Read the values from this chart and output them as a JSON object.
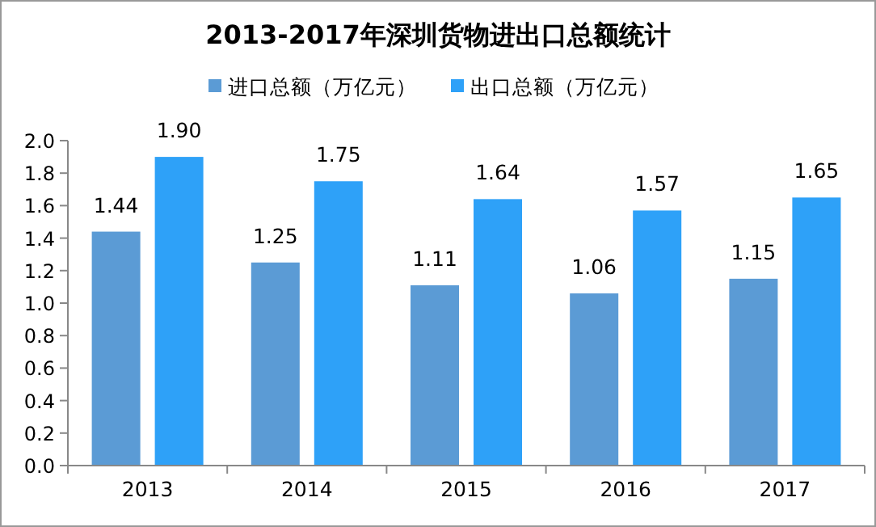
{
  "chart_data": {
    "type": "bar",
    "title": "2013-2017年深圳货物进出口总额统计",
    "categories": [
      "2013",
      "2014",
      "2015",
      "2016",
      "2017"
    ],
    "series": [
      {
        "name": "进口总额（万亿元）",
        "color": "#5b9bd5",
        "values": [
          1.44,
          1.25,
          1.11,
          1.06,
          1.15
        ],
        "value_labels": [
          "1.44",
          "1.25",
          "1.11",
          "1.06",
          "1.15"
        ]
      },
      {
        "name": "出口总额（万亿元）",
        "color": "#2ea1f8",
        "values": [
          1.9,
          1.75,
          1.64,
          1.57,
          1.65
        ],
        "value_labels": [
          "1.90",
          "1.75",
          "1.64",
          "1.57",
          "1.65"
        ]
      }
    ],
    "ylim": [
      0,
      2.0
    ],
    "yticks": [
      {
        "value": 0,
        "label": "0.0"
      },
      {
        "value": 0.2,
        "label": "0.2"
      },
      {
        "value": 0.4,
        "label": "0.4"
      },
      {
        "value": 0.6,
        "label": "0.6"
      },
      {
        "value": 0.8,
        "label": "0.8"
      },
      {
        "value": 1.0,
        "label": "1.0"
      },
      {
        "value": 1.2,
        "label": "1.2"
      },
      {
        "value": 1.4,
        "label": "1.4"
      },
      {
        "value": 1.6,
        "label": "1.6"
      },
      {
        "value": 1.8,
        "label": "1.8"
      },
      {
        "value": 2.0,
        "label": "2.0"
      }
    ],
    "legend": "top",
    "grid": false
  }
}
